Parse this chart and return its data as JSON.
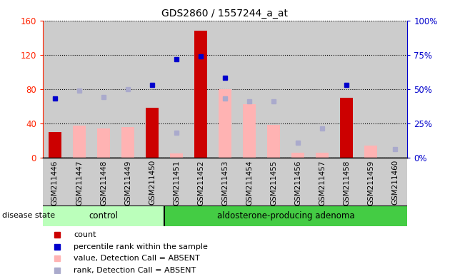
{
  "title": "GDS2860 / 1557244_a_at",
  "samples": [
    "GSM211446",
    "GSM211447",
    "GSM211448",
    "GSM211449",
    "GSM211450",
    "GSM211451",
    "GSM211452",
    "GSM211453",
    "GSM211454",
    "GSM211455",
    "GSM211456",
    "GSM211457",
    "GSM211458",
    "GSM211459",
    "GSM211460"
  ],
  "count": [
    30,
    null,
    null,
    null,
    58,
    null,
    148,
    null,
    null,
    null,
    null,
    null,
    70,
    null,
    null
  ],
  "percentile_rank": [
    43,
    null,
    null,
    null,
    53,
    72,
    74,
    58,
    null,
    null,
    null,
    null,
    53,
    null,
    null
  ],
  "value_absent": [
    null,
    37,
    34,
    36,
    null,
    5,
    null,
    80,
    62,
    38,
    6,
    6,
    null,
    14,
    null
  ],
  "rank_absent": [
    null,
    49,
    44,
    50,
    null,
    18,
    null,
    43,
    41,
    41,
    11,
    21,
    null,
    null,
    6
  ],
  "control_indices": [
    0,
    1,
    2,
    3,
    4
  ],
  "adenoma_indices": [
    5,
    6,
    7,
    8,
    9,
    10,
    11,
    12,
    13,
    14
  ],
  "left_ylim": [
    0,
    160
  ],
  "right_ylim": [
    0,
    100
  ],
  "left_yticks": [
    0,
    40,
    80,
    120,
    160
  ],
  "right_yticks": [
    0,
    25,
    50,
    75,
    100
  ],
  "left_ylabel_color": "#FF2200",
  "right_ylabel_color": "#0000CC",
  "bar_color_count": "#CC0000",
  "bar_color_absent_value": "#FFB3B3",
  "dot_color_rank": "#0000CC",
  "dot_color_absent_rank": "#AAAACC",
  "control_bg": "#BBFFBB",
  "adenoma_bg": "#44CC44",
  "col_bg": "#CCCCCC",
  "grid_color": "black",
  "legend_items": [
    {
      "color": "#CC0000",
      "label": "count"
    },
    {
      "color": "#0000CC",
      "label": "percentile rank within the sample"
    },
    {
      "color": "#FFB3B3",
      "label": "value, Detection Call = ABSENT"
    },
    {
      "color": "#AAAACC",
      "label": "rank, Detection Call = ABSENT"
    }
  ]
}
